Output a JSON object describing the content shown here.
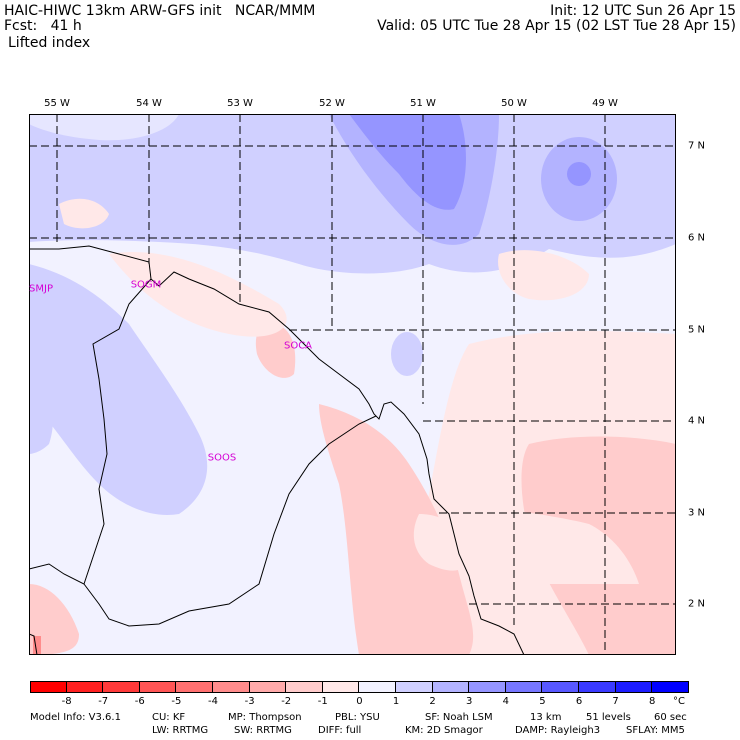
{
  "header": {
    "model_title": "HAIC-HIWC 13km ARW-GFS init   NCAR/MMM",
    "forecast_label": "Fcst:   41 h",
    "field_name": "Lifted index",
    "init_time": "Init: 12 UTC Sun 26 Apr 15",
    "valid_time": "Valid: 05 UTC Tue 28 Apr 15 (02 LST Tue 28 Apr 15)"
  },
  "map": {
    "longitude_labels": [
      "55 W",
      "54 W",
      "53 W",
      "52 W",
      "51 W",
      "50 W",
      "49 W"
    ],
    "latitude_labels": [
      "7 N",
      "6 N",
      "5 N",
      "4 N",
      "3 N",
      "2 N"
    ],
    "stations": [
      {
        "id": "SMJP"
      },
      {
        "id": "SOGM"
      },
      {
        "id": "SOCA"
      },
      {
        "id": "SOOS"
      }
    ]
  },
  "colorbar": {
    "ticks": [
      "-8",
      "-7",
      "-6",
      "-5",
      "-4",
      "-3",
      "-2",
      "-1",
      "0",
      "1",
      "2",
      "3",
      "4",
      "5",
      "6",
      "7",
      "8"
    ],
    "unit": "°C",
    "colors": [
      "#ff0000",
      "#ff2020",
      "#ff3a3a",
      "#ff5555",
      "#ff7070",
      "#ff8c8c",
      "#ffaaaa",
      "#ffcccc",
      "#ffe8e8",
      "#f2f2ff",
      "#d0d0ff",
      "#b3b3ff",
      "#9595ff",
      "#7777ff",
      "#5858ff",
      "#3a3aff",
      "#1c1cff",
      "#0000ff"
    ]
  },
  "model_info": {
    "line1": [
      "Model Info: V3.6.1",
      "CU: KF",
      "MP: Thompson",
      "PBL: YSU",
      "SF: Noah LSM",
      "13 km",
      "51 levels",
      "60 sec"
    ],
    "line2": [
      "LW: RRTMG",
      "SW: RRTMG",
      "DIFF: full",
      "KM: 2D Smagor",
      "DAMP: Rayleigh3",
      "SFLAY: MM5"
    ]
  }
}
